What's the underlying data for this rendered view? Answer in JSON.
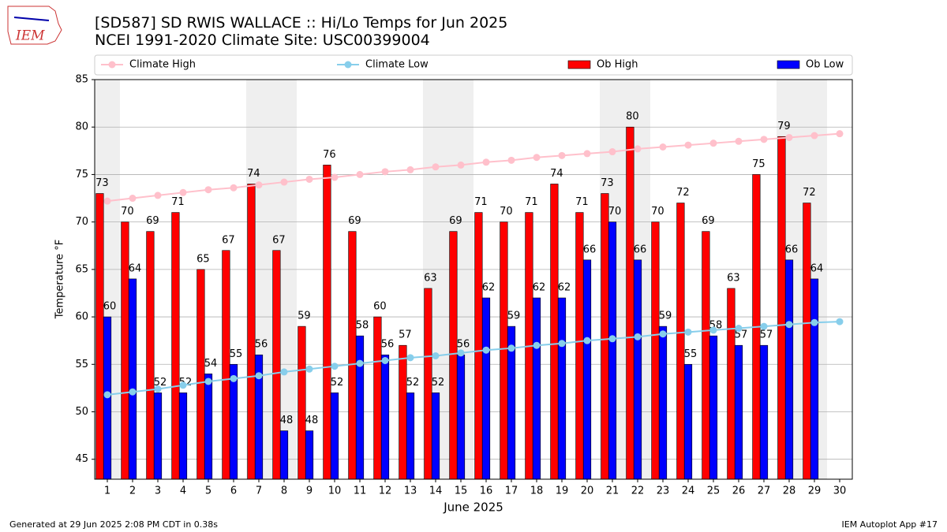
{
  "logo": "IEM",
  "footer": {
    "left": "Generated at 29 Jun 2025 2:08 PM CDT in 0.38s",
    "right": "IEM Autoplot App #17"
  },
  "chart_data": {
    "type": "bar",
    "title": "[SD587] SD RWIS WALLACE :: Hi/Lo Temps for Jun 2025",
    "subtitle": "NCEI 1991-2020 Climate Site: USC00399004",
    "x_label": "June 2025",
    "y_label": "Temperature °F",
    "x": [
      1,
      2,
      3,
      4,
      5,
      6,
      7,
      8,
      9,
      10,
      11,
      12,
      13,
      14,
      15,
      16,
      17,
      18,
      19,
      20,
      21,
      22,
      23,
      24,
      25,
      26,
      27,
      28,
      29,
      30
    ],
    "xlim": [
      0.5,
      30.5
    ],
    "xticks": [
      1,
      2,
      3,
      4,
      5,
      6,
      7,
      8,
      9,
      10,
      11,
      12,
      13,
      14,
      15,
      16,
      17,
      18,
      19,
      20,
      21,
      22,
      23,
      24,
      25,
      26,
      27,
      28,
      29,
      30
    ],
    "ylim": [
      42.9,
      85
    ],
    "yticks": [
      45,
      50,
      55,
      60,
      65,
      70,
      75,
      80,
      85
    ],
    "grid": true,
    "legend": "top",
    "series": [
      {
        "name": "Climate High",
        "type": "line",
        "color": "#ffc0cb",
        "values": [
          72.2,
          72.5,
          72.8,
          73.1,
          73.4,
          73.6,
          73.9,
          74.2,
          74.5,
          74.7,
          75.0,
          75.3,
          75.5,
          75.8,
          76.0,
          76.3,
          76.5,
          76.8,
          77.0,
          77.2,
          77.4,
          77.7,
          77.9,
          78.1,
          78.3,
          78.5,
          78.7,
          78.9,
          79.1,
          79.3
        ]
      },
      {
        "name": "Climate Low",
        "type": "line",
        "color": "#87ceeb",
        "values": [
          51.8,
          52.1,
          52.4,
          52.8,
          53.2,
          53.5,
          53.8,
          54.2,
          54.5,
          54.8,
          55.1,
          55.4,
          55.7,
          55.9,
          56.2,
          56.5,
          56.7,
          57.0,
          57.2,
          57.5,
          57.7,
          57.9,
          58.2,
          58.4,
          58.6,
          58.8,
          59.0,
          59.2,
          59.4,
          59.5
        ]
      },
      {
        "name": "Ob High",
        "type": "bar",
        "color": "#ff0000",
        "values": [
          73,
          70,
          69,
          71,
          65,
          67,
          74,
          67,
          59,
          76,
          69,
          60,
          57,
          63,
          69,
          71,
          70,
          71,
          74,
          71,
          73,
          80,
          70,
          72,
          69,
          63,
          75,
          79,
          72,
          null
        ]
      },
      {
        "name": "Ob Low",
        "type": "bar",
        "color": "#0000ff",
        "values": [
          60,
          64,
          52,
          52,
          54,
          55,
          56,
          48,
          48,
          52,
          58,
          56,
          52,
          52,
          56,
          62,
          59,
          62,
          62,
          66,
          70,
          66,
          59,
          55,
          58,
          57,
          57,
          66,
          64,
          null
        ]
      }
    ]
  }
}
